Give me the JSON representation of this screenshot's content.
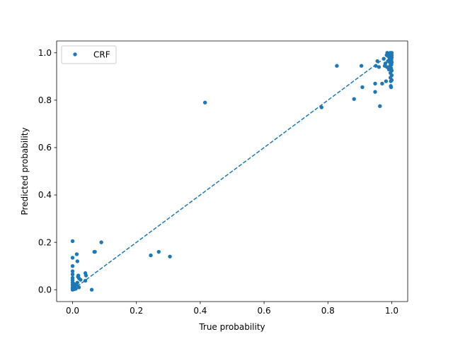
{
  "chart_data": {
    "type": "scatter",
    "xlabel": "True probability",
    "ylabel": "Predicted probability",
    "xlim": [
      -0.05,
      1.05
    ],
    "ylim": [
      -0.05,
      1.05
    ],
    "xticks": [
      "0.0",
      "0.2",
      "0.4",
      "0.6",
      "0.8",
      "1.0"
    ],
    "yticks": [
      "0.0",
      "0.2",
      "0.4",
      "0.6",
      "0.8",
      "1.0"
    ],
    "grid": false,
    "legend_position": "top-left",
    "marker_color": "#1f77b4",
    "series": [
      {
        "name": "CRF",
        "points": [
          [
            0.0,
            0.205
          ],
          [
            0.0,
            0.135
          ],
          [
            0.0,
            0.1
          ],
          [
            0.0,
            0.078
          ],
          [
            0.0,
            0.065
          ],
          [
            0.0,
            0.05
          ],
          [
            0.0,
            0.04
          ],
          [
            0.0,
            0.03
          ],
          [
            0.0,
            0.02
          ],
          [
            0.0,
            0.01
          ],
          [
            0.0,
            0.004
          ],
          [
            0.0,
            0.0
          ],
          [
            0.002,
            0.015
          ],
          [
            0.003,
            0.006
          ],
          [
            0.004,
            0.025
          ],
          [
            0.005,
            0.002
          ],
          [
            0.006,
            0.012
          ],
          [
            0.008,
            0.008
          ],
          [
            0.01,
            0.004
          ],
          [
            0.012,
            0.02
          ],
          [
            0.013,
            0.15
          ],
          [
            0.015,
            0.12
          ],
          [
            0.015,
            0.03
          ],
          [
            0.017,
            0.055
          ],
          [
            0.018,
            0.06
          ],
          [
            0.02,
            0.01
          ],
          [
            0.02,
            0.048
          ],
          [
            0.025,
            0.042
          ],
          [
            0.04,
            0.07
          ],
          [
            0.04,
            0.038
          ],
          [
            0.042,
            0.06
          ],
          [
            0.06,
            0.0
          ],
          [
            0.068,
            0.16
          ],
          [
            0.07,
            0.16
          ],
          [
            0.09,
            0.2
          ],
          [
            0.245,
            0.145
          ],
          [
            0.27,
            0.16
          ],
          [
            0.305,
            0.14
          ],
          [
            0.415,
            0.79
          ],
          [
            0.78,
            0.77
          ],
          [
            0.828,
            0.945
          ],
          [
            0.882,
            0.805
          ],
          [
            0.905,
            0.945
          ],
          [
            0.908,
            0.855
          ],
          [
            0.948,
            0.87
          ],
          [
            0.948,
            0.835
          ],
          [
            0.95,
            0.945
          ],
          [
            0.955,
            0.965
          ],
          [
            0.96,
            0.94
          ],
          [
            0.963,
            0.775
          ],
          [
            0.97,
            0.87
          ],
          [
            0.975,
            0.975
          ],
          [
            0.978,
            0.945
          ],
          [
            0.98,
            0.955
          ],
          [
            0.982,
            0.88
          ],
          [
            0.984,
            0.99
          ],
          [
            0.985,
            0.94
          ],
          [
            0.986,
            1.0
          ],
          [
            0.988,
            0.965
          ],
          [
            0.99,
            0.985
          ],
          [
            0.991,
            0.93
          ],
          [
            0.992,
            0.995
          ],
          [
            0.993,
            0.975
          ],
          [
            0.994,
            0.96
          ],
          [
            0.995,
            0.945
          ],
          [
            0.996,
            0.915
          ],
          [
            0.996,
            0.895
          ],
          [
            0.997,
            0.88
          ],
          [
            0.997,
            0.86
          ],
          [
            0.998,
            0.855
          ],
          [
            0.998,
            0.935
          ],
          [
            0.999,
            0.95
          ],
          [
            0.999,
            0.97
          ],
          [
            1.0,
            0.98
          ],
          [
            1.0,
            0.99
          ],
          [
            1.0,
            1.0
          ],
          [
            1.0,
            0.925
          ],
          [
            1.0,
            0.905
          ],
          [
            1.0,
            0.885
          ],
          [
            1.0,
            0.96
          ],
          [
            0.999,
            0.995
          ],
          [
            0.998,
            0.985
          ],
          [
            0.997,
            0.99
          ],
          [
            0.995,
            1.0
          ],
          [
            0.993,
            0.99
          ]
        ]
      }
    ],
    "reference_line": {
      "style": "dashed",
      "from": [
        0.0,
        0.0
      ],
      "to": [
        1.0,
        1.0
      ]
    }
  }
}
